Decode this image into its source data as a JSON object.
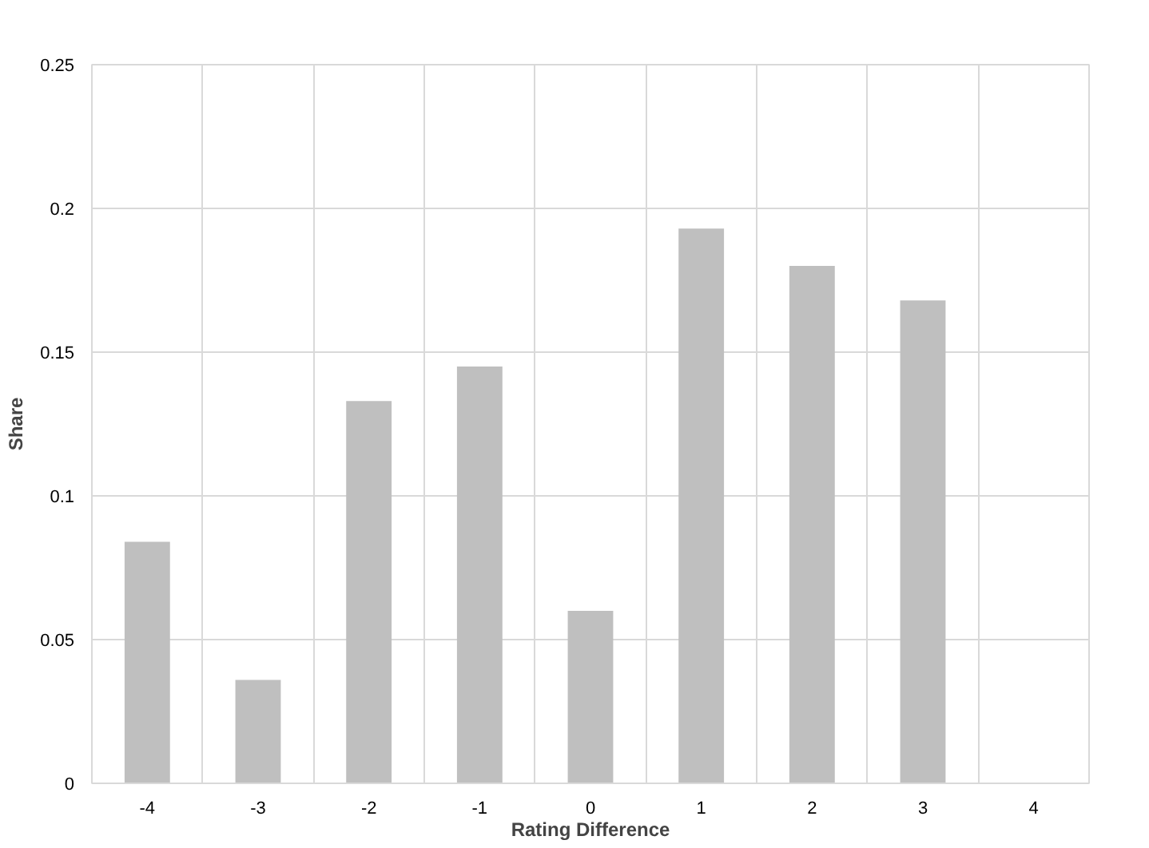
{
  "chart_data": {
    "type": "bar",
    "xlabel": "Rating Difference",
    "ylabel": "Share",
    "categories": [
      "-4",
      "-3",
      "-2",
      "-1",
      "0",
      "1",
      "2",
      "3",
      "4"
    ],
    "values": [
      0.084,
      0.036,
      0.133,
      0.145,
      0.06,
      0.193,
      0.18,
      0.168,
      0
    ],
    "color": "#bfbfbf",
    "ylim": [
      0,
      0.25
    ],
    "yticks": [
      0,
      0.05,
      0.1,
      0.15,
      0.2,
      0.25
    ],
    "grid": true
  }
}
